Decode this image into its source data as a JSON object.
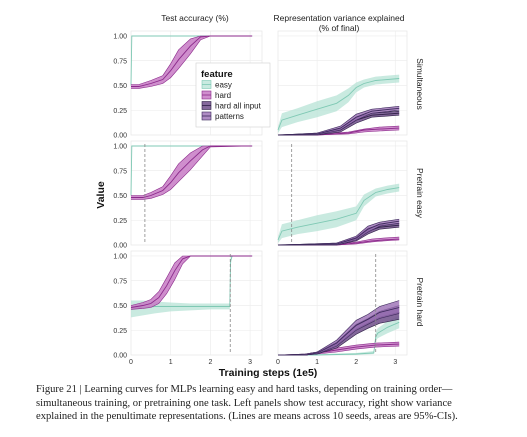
{
  "figure": {
    "col_titles": [
      "Test accuracy (%)",
      "Representation variance explained",
      "(% of final)"
    ],
    "row_labels": [
      "Simultaneous",
      "Pretrain easy",
      "Pretrain hard"
    ],
    "ylabel": "Value",
    "xlabel": "Training steps (1e5)",
    "legend": {
      "title": "feature",
      "entries": [
        "easy",
        "hard",
        "hard all input",
        "patterns"
      ],
      "placement": "inside top-left panel, right side"
    }
  },
  "chart_data": {
    "type": "line",
    "layout": "3 rows x 2 columns facet grid",
    "x_ticks": [
      "0",
      "1",
      "2",
      "3"
    ],
    "x_range": [
      0,
      3.3
    ],
    "y_ticks": [
      "0.00",
      "0.25",
      "0.50",
      "0.75",
      "1.00"
    ],
    "y_range": [
      0,
      1.05
    ],
    "grid": true,
    "colors": {
      "easy": "#b7e3d6",
      "easy_line": "#7fc9b4",
      "hard": "#c77ac4",
      "hard_line": "#8b2a8b",
      "hard_all_input": "#6f4e8a",
      "hard_all_input_line": "#2e1f45",
      "patterns": "#9b6fb5",
      "patterns_line": "#3d2a5c",
      "dashed_marker": "#888888"
    },
    "panels": [
      {
        "row": "Simultaneous",
        "col": "Test accuracy (%)",
        "marker_x": null,
        "series": [
          {
            "name": "easy",
            "x": [
              0,
              0.02,
              0.05,
              3.05
            ],
            "y": [
              0.5,
              1.0,
              1.0,
              1.0
            ],
            "lo": [
              0.47,
              0.99,
              1.0,
              1.0
            ],
            "hi": [
              0.53,
              1.0,
              1.0,
              1.0
            ]
          },
          {
            "name": "hard",
            "x": [
              0,
              0.2,
              0.5,
              0.8,
              1.0,
              1.2,
              1.5,
              1.75,
              2.0,
              3.05
            ],
            "y": [
              0.49,
              0.49,
              0.52,
              0.56,
              0.65,
              0.76,
              0.9,
              0.99,
              1.0,
              1.0
            ],
            "lo": [
              0.47,
              0.47,
              0.49,
              0.52,
              0.58,
              0.67,
              0.82,
              0.96,
              1.0,
              1.0
            ],
            "hi": [
              0.51,
              0.51,
              0.55,
              0.6,
              0.72,
              0.86,
              0.97,
              1.0,
              1.0,
              1.0
            ]
          }
        ]
      },
      {
        "row": "Simultaneous",
        "col": "Representation variance explained (% of final)",
        "marker_x": null,
        "series": [
          {
            "name": "easy",
            "x": [
              0,
              0.1,
              0.5,
              1.0,
              1.5,
              1.8,
              2.0,
              2.2,
              2.5,
              3.1
            ],
            "y": [
              0.05,
              0.15,
              0.2,
              0.26,
              0.32,
              0.4,
              0.48,
              0.52,
              0.55,
              0.57
            ],
            "lo": [
              0.02,
              0.08,
              0.13,
              0.18,
              0.24,
              0.33,
              0.43,
              0.48,
              0.51,
              0.53
            ],
            "hi": [
              0.08,
              0.22,
              0.27,
              0.34,
              0.4,
              0.47,
              0.53,
              0.56,
              0.59,
              0.61
            ]
          },
          {
            "name": "hard",
            "x": [
              0,
              1.0,
              1.8,
              2.2,
              2.6,
              3.1
            ],
            "y": [
              0.0,
              0.0,
              0.02,
              0.05,
              0.06,
              0.07
            ],
            "lo": [
              0.0,
              0.0,
              0.01,
              0.03,
              0.04,
              0.05
            ],
            "hi": [
              0.0,
              0.01,
              0.03,
              0.06,
              0.08,
              0.09
            ]
          },
          {
            "name": "hard all input",
            "x": [
              0,
              1.0,
              1.6,
              2.0,
              2.4,
              3.1
            ],
            "y": [
              0.0,
              0.01,
              0.05,
              0.15,
              0.2,
              0.22
            ],
            "lo": [
              0.0,
              0.0,
              0.03,
              0.12,
              0.18,
              0.2
            ],
            "hi": [
              0.0,
              0.02,
              0.07,
              0.18,
              0.22,
              0.24
            ]
          },
          {
            "name": "patterns",
            "x": [
              0,
              1.0,
              1.6,
              2.0,
              2.4,
              3.1
            ],
            "y": [
              0.0,
              0.01,
              0.07,
              0.18,
              0.24,
              0.27
            ],
            "lo": [
              0.0,
              0.0,
              0.05,
              0.15,
              0.22,
              0.25
            ],
            "hi": [
              0.0,
              0.02,
              0.09,
              0.21,
              0.26,
              0.29
            ]
          }
        ]
      },
      {
        "row": "Pretrain easy",
        "col": "Test accuracy (%)",
        "marker_x": 0.35,
        "series": [
          {
            "name": "easy",
            "x": [
              0,
              0.02,
              0.05,
              3.05
            ],
            "y": [
              0.5,
              1.0,
              1.0,
              1.0
            ],
            "lo": [
              0.47,
              0.99,
              1.0,
              1.0
            ],
            "hi": [
              0.53,
              1.0,
              1.0,
              1.0
            ]
          },
          {
            "name": "hard",
            "x": [
              0,
              0.3,
              0.5,
              0.8,
              1.0,
              1.2,
              1.5,
              1.8,
              2.0,
              3.05
            ],
            "y": [
              0.48,
              0.48,
              0.5,
              0.55,
              0.63,
              0.73,
              0.85,
              0.96,
              1.0,
              1.0
            ],
            "lo": [
              0.46,
              0.46,
              0.47,
              0.51,
              0.56,
              0.64,
              0.76,
              0.9,
              0.99,
              1.0
            ],
            "hi": [
              0.5,
              0.5,
              0.53,
              0.59,
              0.7,
              0.82,
              0.93,
              1.0,
              1.0,
              1.0
            ]
          }
        ]
      },
      {
        "row": "Pretrain easy",
        "col": "Representation variance explained (% of final)",
        "marker_x": 0.35,
        "series": [
          {
            "name": "easy",
            "x": [
              0,
              0.1,
              0.5,
              1.0,
              1.5,
              2.0,
              2.2,
              2.5,
              2.8,
              3.1
            ],
            "y": [
              0.05,
              0.14,
              0.18,
              0.22,
              0.26,
              0.32,
              0.45,
              0.53,
              0.56,
              0.58
            ],
            "lo": [
              0.02,
              0.07,
              0.11,
              0.14,
              0.18,
              0.25,
              0.39,
              0.49,
              0.52,
              0.54
            ],
            "hi": [
              0.08,
              0.21,
              0.25,
              0.3,
              0.34,
              0.39,
              0.51,
              0.57,
              0.6,
              0.62
            ]
          },
          {
            "name": "hard",
            "x": [
              0,
              1.5,
              2.0,
              2.4,
              2.7,
              3.1
            ],
            "y": [
              0.0,
              0.0,
              0.02,
              0.04,
              0.05,
              0.06
            ],
            "lo": [
              0.0,
              0.0,
              0.01,
              0.03,
              0.04,
              0.05
            ],
            "hi": [
              0.0,
              0.01,
              0.03,
              0.06,
              0.07,
              0.08
            ]
          },
          {
            "name": "hard all input",
            "x": [
              0,
              1.5,
              2.0,
              2.3,
              2.6,
              3.1
            ],
            "y": [
              0.0,
              0.01,
              0.06,
              0.14,
              0.18,
              0.2
            ],
            "lo": [
              0.0,
              0.0,
              0.04,
              0.11,
              0.16,
              0.18
            ],
            "hi": [
              0.0,
              0.02,
              0.08,
              0.17,
              0.2,
              0.22
            ]
          },
          {
            "name": "patterns",
            "x": [
              0,
              1.5,
              2.0,
              2.3,
              2.6,
              3.1
            ],
            "y": [
              0.0,
              0.01,
              0.07,
              0.16,
              0.21,
              0.24
            ],
            "lo": [
              0.0,
              0.0,
              0.05,
              0.13,
              0.19,
              0.22
            ],
            "hi": [
              0.0,
              0.02,
              0.09,
              0.19,
              0.23,
              0.26
            ]
          }
        ]
      },
      {
        "row": "Pretrain hard",
        "col": "Test accuracy (%)",
        "marker_x": 2.5,
        "series": [
          {
            "name": "easy",
            "x": [
              0,
              0.3,
              0.6,
              1.0,
              1.5,
              2.0,
              2.49,
              2.51,
              2.55,
              3.05
            ],
            "y": [
              0.47,
              0.48,
              0.49,
              0.49,
              0.49,
              0.49,
              0.49,
              0.95,
              1.0,
              1.0
            ],
            "lo": [
              0.38,
              0.4,
              0.42,
              0.44,
              0.45,
              0.46,
              0.46,
              0.9,
              1.0,
              1.0
            ],
            "hi": [
              0.55,
              0.55,
              0.54,
              0.53,
              0.52,
              0.52,
              0.52,
              1.0,
              1.0,
              1.0
            ]
          },
          {
            "name": "hard",
            "x": [
              0,
              0.3,
              0.5,
              0.7,
              0.9,
              1.1,
              1.3,
              1.5,
              3.05
            ],
            "y": [
              0.48,
              0.5,
              0.52,
              0.58,
              0.7,
              0.85,
              0.97,
              1.0,
              1.0
            ],
            "lo": [
              0.46,
              0.47,
              0.48,
              0.52,
              0.62,
              0.76,
              0.92,
              1.0,
              1.0
            ],
            "hi": [
              0.5,
              0.53,
              0.56,
              0.64,
              0.78,
              0.93,
              1.0,
              1.0,
              1.0
            ]
          }
        ]
      },
      {
        "row": "Pretrain hard",
        "col": "Representation variance explained (% of final)",
        "marker_x": 2.5,
        "series": [
          {
            "name": "easy",
            "x": [
              0,
              1.0,
              2.0,
              2.45,
              2.5,
              2.55,
              2.8,
              3.1
            ],
            "y": [
              0.0,
              0.0,
              0.01,
              0.02,
              0.18,
              0.22,
              0.28,
              0.33
            ],
            "lo": [
              0.0,
              0.0,
              0.0,
              0.01,
              0.14,
              0.17,
              0.22,
              0.27
            ],
            "hi": [
              0.0,
              0.01,
              0.02,
              0.04,
              0.23,
              0.27,
              0.34,
              0.4
            ]
          },
          {
            "name": "hard",
            "x": [
              0,
              0.7,
              1.0,
              1.5,
              2.0,
              2.5,
              3.1
            ],
            "y": [
              0.0,
              0.0,
              0.02,
              0.05,
              0.08,
              0.1,
              0.11
            ],
            "lo": [
              0.0,
              0.0,
              0.01,
              0.03,
              0.06,
              0.08,
              0.09
            ],
            "hi": [
              0.0,
              0.01,
              0.03,
              0.07,
              0.1,
              0.12,
              0.13
            ]
          },
          {
            "name": "hard all input",
            "x": [
              0,
              0.7,
              1.0,
              1.5,
              2.0,
              2.3,
              2.6,
              3.1
            ],
            "y": [
              0.0,
              0.0,
              0.02,
              0.1,
              0.26,
              0.32,
              0.38,
              0.43
            ],
            "lo": [
              0.0,
              0.0,
              0.01,
              0.07,
              0.21,
              0.27,
              0.32,
              0.36
            ],
            "hi": [
              0.0,
              0.01,
              0.03,
              0.13,
              0.31,
              0.37,
              0.44,
              0.5
            ]
          },
          {
            "name": "patterns",
            "x": [
              0,
              0.7,
              1.0,
              1.5,
              2.0,
              2.3,
              2.6,
              3.1
            ],
            "y": [
              0.0,
              0.0,
              0.02,
              0.12,
              0.3,
              0.36,
              0.43,
              0.48
            ],
            "lo": [
              0.0,
              0.0,
              0.01,
              0.09,
              0.25,
              0.31,
              0.37,
              0.42
            ],
            "hi": [
              0.0,
              0.01,
              0.03,
              0.15,
              0.35,
              0.41,
              0.49,
              0.55
            ]
          }
        ]
      }
    ]
  },
  "caption": {
    "lines": [
      "Figure 21 | Learning curves for MLPs learning easy and hard tasks, depending on training order—",
      "simultaneous training, or pretraining one task. Left panels show test accuracy, right show variance",
      "explained in the penultimate representations. (Lines are means across 10 seeds, areas are 95%-CIs)."
    ]
  }
}
